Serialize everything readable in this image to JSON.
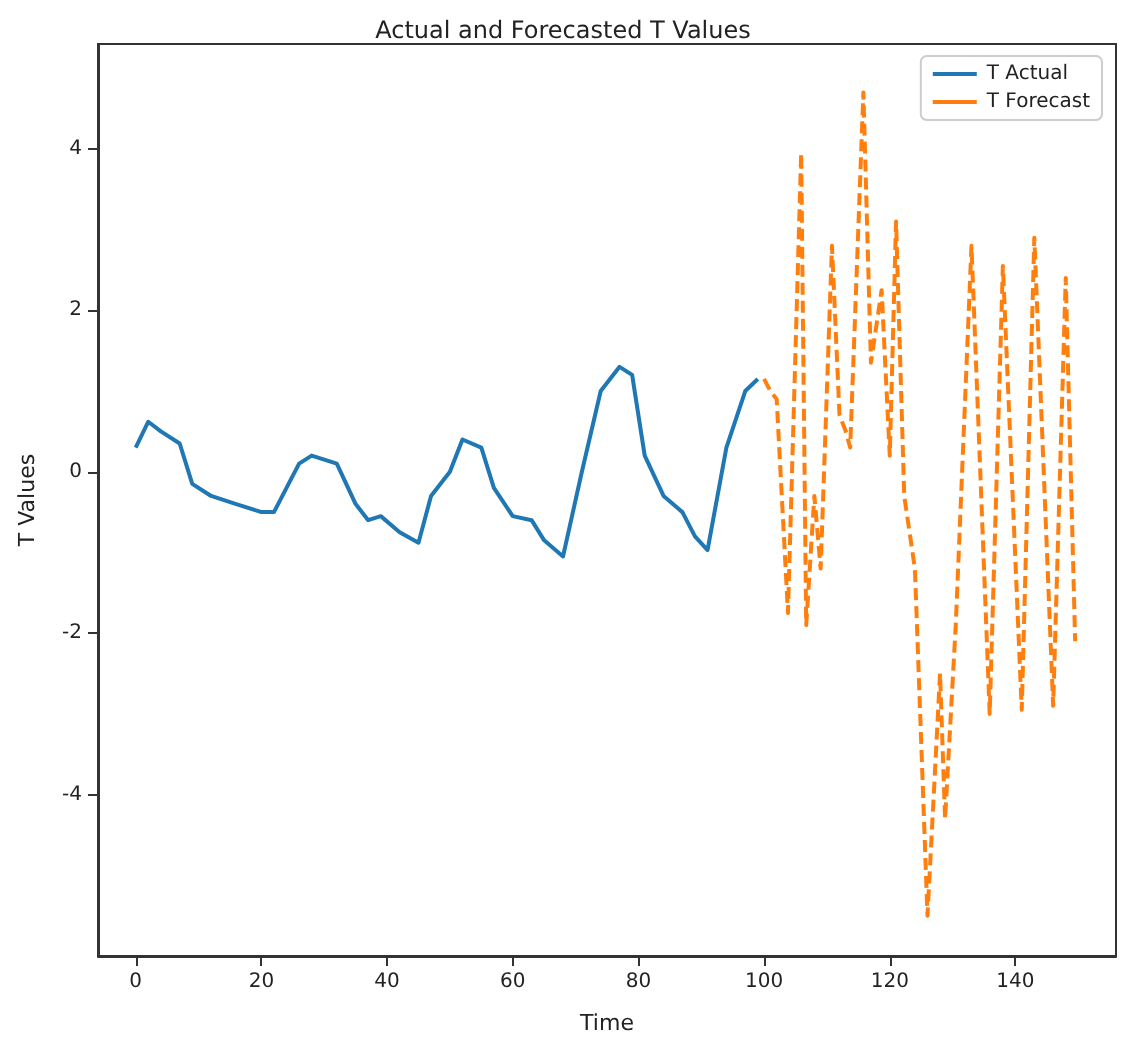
{
  "chart_data": {
    "type": "line",
    "title": "Actual and Forecasted T Values",
    "xlabel": "Time",
    "ylabel": "T Values",
    "xlim": [
      -6,
      156
    ],
    "ylim": [
      -6,
      5.3
    ],
    "xticks": [
      0,
      20,
      40,
      60,
      80,
      100,
      120,
      140
    ],
    "yticks": [
      -4,
      -2,
      0,
      2,
      4
    ],
    "grid": false,
    "legend": "top right",
    "marker": "none",
    "series": [
      {
        "name": "T Actual",
        "color": "#1f77b4",
        "line_style": "solid",
        "x": [
          0,
          2,
          4,
          7,
          9,
          12,
          16,
          20,
          22,
          24,
          26,
          28,
          32,
          35,
          37,
          39,
          42,
          45,
          47,
          50,
          52,
          55,
          57,
          60,
          63,
          65,
          68,
          71,
          74,
          77,
          79,
          81,
          84,
          87,
          89,
          91,
          94,
          97,
          99
        ],
        "values": [
          0.3,
          0.62,
          0.5,
          0.35,
          -0.15,
          -0.3,
          -0.4,
          -0.5,
          -0.5,
          -0.2,
          0.1,
          0.2,
          0.1,
          -0.4,
          -0.6,
          -0.55,
          -0.75,
          -0.88,
          -0.3,
          0.0,
          0.4,
          0.3,
          -0.2,
          -0.55,
          -0.6,
          -0.85,
          -1.05,
          0.0,
          1.0,
          1.3,
          1.2,
          0.2,
          -0.3,
          -0.5,
          -0.8,
          -0.97,
          0.3,
          1.0,
          1.15
        ]
      },
      {
        "name": "T Forecast",
        "color": "#ff7f0e",
        "line_style": "dashed",
        "x": [
          100,
          101,
          102,
          103.8,
          105.9,
          106.7,
          108,
          109,
          110.8,
          112,
          113,
          113.7,
          115.8,
          117,
          118.7,
          120,
          121,
          122.3,
          124,
          126,
          128,
          128.8,
          130.5,
          133,
          135.9,
          138,
          141,
          143,
          146,
          148,
          149.5
        ],
        "values": [
          1.15,
          1.0,
          0.9,
          -1.75,
          3.95,
          -1.9,
          -0.3,
          -1.2,
          2.8,
          0.7,
          0.5,
          0.3,
          4.7,
          1.35,
          2.25,
          0.2,
          3.1,
          -0.3,
          -1.2,
          -5.5,
          -2.5,
          -4.3,
          -1.9,
          2.8,
          -3.0,
          2.55,
          -2.95,
          2.9,
          -2.9,
          2.4,
          -2.1
        ]
      }
    ]
  }
}
